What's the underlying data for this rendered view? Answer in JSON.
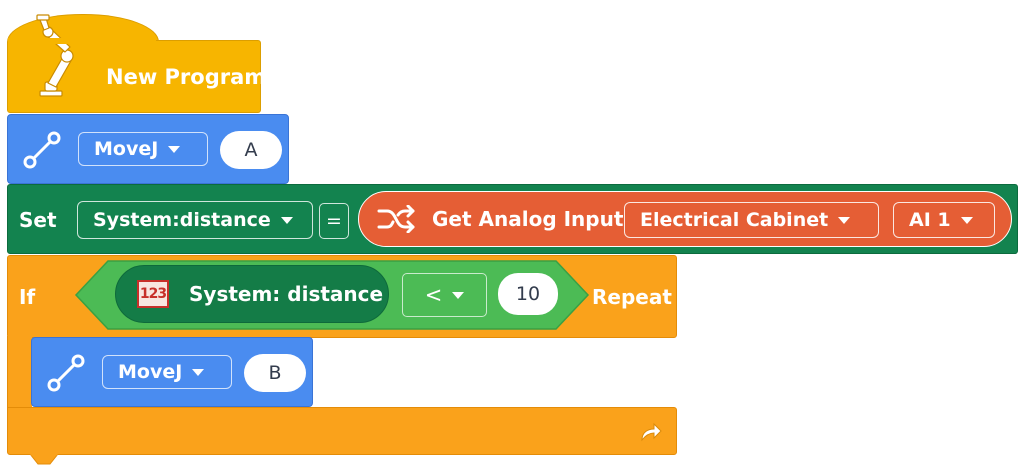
{
  "hat": {
    "label": "New Program",
    "icon": "robot-arm-icon",
    "color": "#f7b500"
  },
  "move_a": {
    "label": "MoveJ",
    "point": "A",
    "icon": "path-icon",
    "color": "#4a8cf0"
  },
  "set": {
    "label": "Set",
    "variable": "System:distance",
    "equals": "=",
    "color": "#13834f",
    "input": {
      "label": "Get Analog Input",
      "icon": "shuffle-icon",
      "source": "Electrical Cabinet",
      "channel": "AI 1",
      "color": "#e55e35"
    }
  },
  "if_block": {
    "label": "If",
    "repeat_label": "Repeat",
    "color": "#faa21b",
    "condition": {
      "var_badge": "123",
      "var_label": "System:  distance",
      "operator": "<",
      "value": "10",
      "color": "#4cbb55"
    },
    "body": {
      "label": "MoveJ",
      "point": "B",
      "icon": "path-icon"
    },
    "loop_icon": "loop-arrow-icon"
  }
}
